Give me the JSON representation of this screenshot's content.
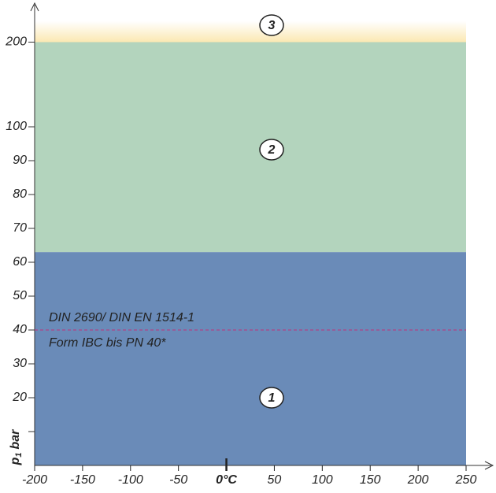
{
  "chart_data": {
    "type": "region",
    "y_label": {
      "symbol": "p",
      "subscript": "1",
      "unit": "bar"
    },
    "xlim": [
      -200,
      250
    ],
    "xticks": [
      -200,
      -150,
      -100,
      -50,
      {
        "value": 0,
        "label": "0°C"
      },
      50,
      100,
      150,
      200,
      250
    ],
    "ylim": [
      0,
      225
    ],
    "yticks": [
      {
        "value": 10,
        "label": null
      },
      20,
      30,
      40,
      50,
      60,
      70,
      80,
      90,
      100,
      200
    ],
    "regions": [
      {
        "label": "1",
        "y": [
          0,
          63
        ],
        "color": "#6a8bb8"
      },
      {
        "label": "2",
        "y": [
          63,
          200
        ],
        "color": "#b3d4bd"
      },
      {
        "label": "3",
        "y": [
          200,
          225
        ],
        "color": "#fbe8b2"
      }
    ],
    "reference_line": {
      "y": 40,
      "color": "#c0307a",
      "text": [
        "DIN 2690/ DIN EN 1514-1",
        "Form IBC bis PN 40*"
      ]
    }
  }
}
